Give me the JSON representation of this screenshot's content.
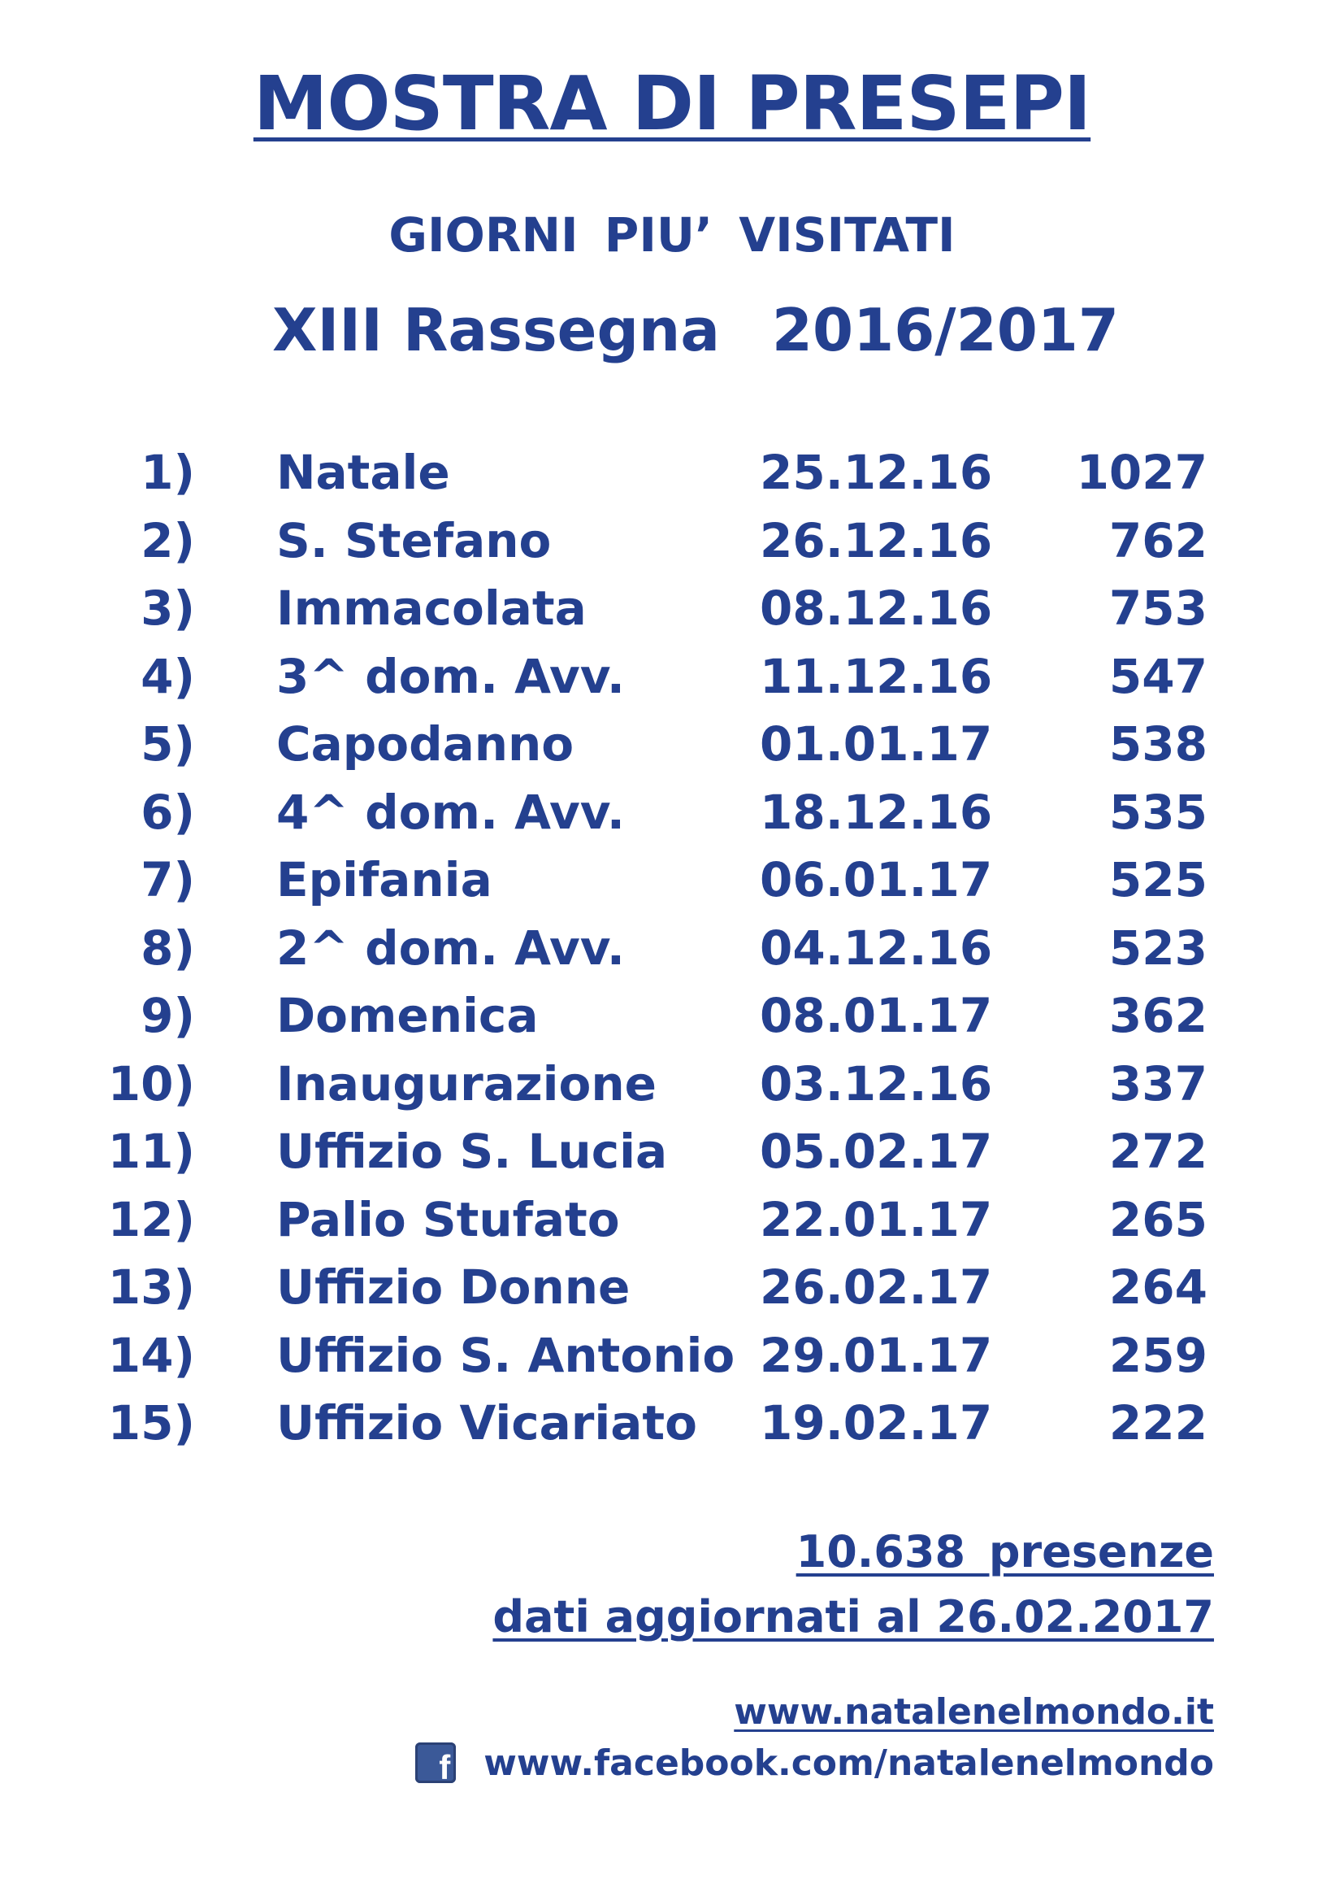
{
  "header": {
    "title": "MOSTRA DI PRESEPI",
    "subtitle": "GIORNI PIU’ VISITATI",
    "edition": "XIII Rassegna",
    "season": "2016/2017"
  },
  "ranking": [
    {
      "rank": "1)",
      "name": "Natale",
      "date": "25.12.16",
      "visitors": "1027"
    },
    {
      "rank": "2)",
      "name": "S. Stefano",
      "date": "26.12.16",
      "visitors": "762"
    },
    {
      "rank": "3)",
      "name": "Immacolata",
      "date": "08.12.16",
      "visitors": "753"
    },
    {
      "rank": "4)",
      "name": "3^ dom. Avv.",
      "date": "11.12.16",
      "visitors": "547"
    },
    {
      "rank": "5)",
      "name": "Capodanno",
      "date": "01.01.17",
      "visitors": "538"
    },
    {
      "rank": "6)",
      "name": "4^ dom. Avv.",
      "date": "18.12.16",
      "visitors": "535"
    },
    {
      "rank": "7)",
      "name": "Epifania",
      "date": "06.01.17",
      "visitors": "525"
    },
    {
      "rank": "8)",
      "name": "2^ dom. Avv.",
      "date": "04.12.16",
      "visitors": "523"
    },
    {
      "rank": "9)",
      "name": "Domenica",
      "date": "08.01.17",
      "visitors": "362"
    },
    {
      "rank": "10)",
      "name": "Inaugurazione",
      "date": "03.12.16",
      "visitors": "337"
    },
    {
      "rank": "11)",
      "name": "Uffizio S. Lucia",
      "date": "05.02.17",
      "visitors": "272"
    },
    {
      "rank": "12)",
      "name": "Palio Stufato",
      "date": "22.01.17",
      "visitors": "265"
    },
    {
      "rank": "13)",
      "name": "Uffizio Donne",
      "date": "26.02.17",
      "visitors": "264"
    },
    {
      "rank": "14)",
      "name": "Uffizio S. Antonio",
      "date": "29.01.17",
      "visitors": "259"
    },
    {
      "rank": "15)",
      "name": "Uffizio Vicariato",
      "date": "19.02.17",
      "visitors": "222"
    }
  ],
  "footer": {
    "total": "10.638 presenze",
    "updated": "dati aggiornati al 26.02.2017",
    "website": "www.natalenelmondo.it",
    "facebook": "www.facebook.com/natalenelmondo"
  },
  "style": {
    "text_color": "#24408f",
    "facebook_blue": "#3b5998"
  },
  "icons": {
    "facebook": "facebook-icon"
  }
}
